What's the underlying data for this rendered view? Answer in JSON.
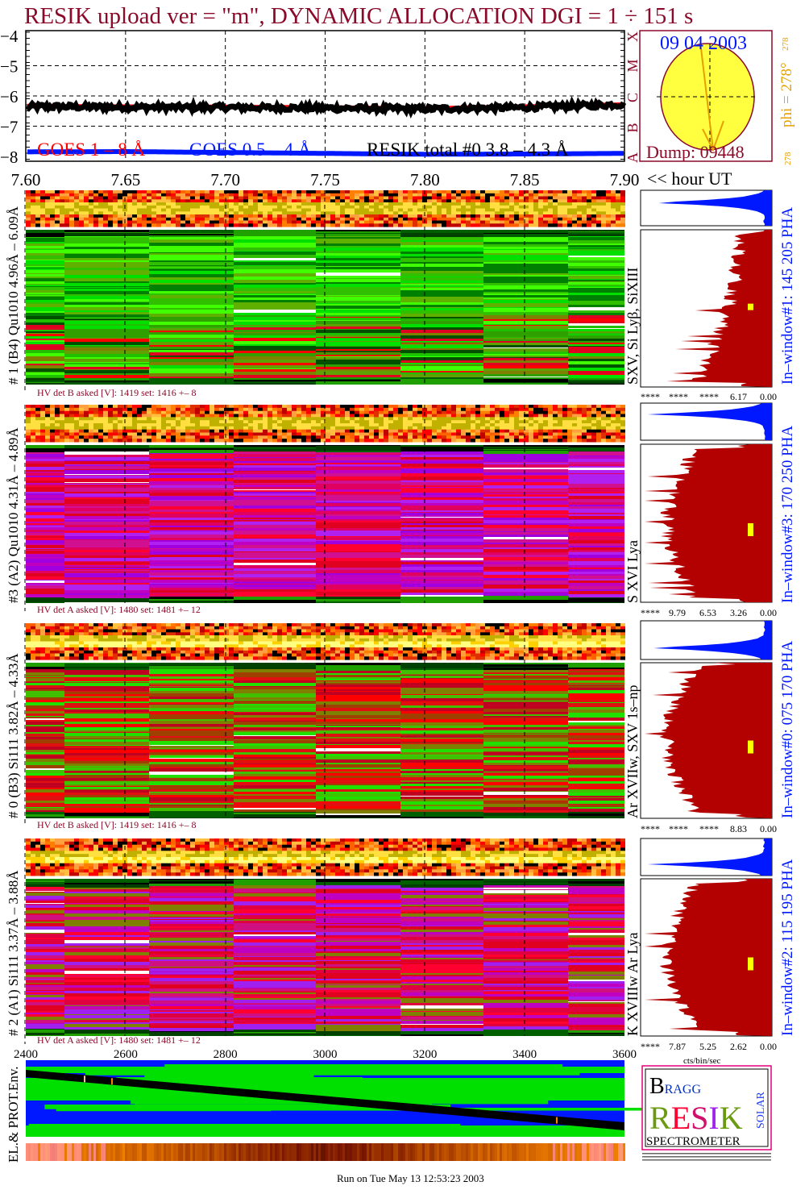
{
  "title": "RESIK upload ver = \"m\", DYNAMIC ALLOCATION  DGI =   1 ÷ 151 s",
  "colors": {
    "title": "#8b0a2a",
    "goes_long": "#ff0000",
    "goes_short": "#0018ff",
    "resik": "#000000",
    "histogram": "#b30000",
    "histogram_top": "#0018ff",
    "sun": "#ffff40",
    "sun_border": "#8b0a2a",
    "phi": "#e8a000"
  },
  "chart_data": [
    {
      "type": "line",
      "x_ticks": [
        "7.60",
        "7.65",
        "7.70",
        "7.75",
        "7.80",
        "7.85",
        "7.90"
      ],
      "xlim": [
        7.6,
        7.9
      ],
      "xlabel": "<< hour UT",
      "y_ticks": [
        "−4",
        "−5",
        "−6",
        "−7",
        "−8"
      ],
      "ylim": [
        -8,
        -4
      ],
      "flare_class_labels": [
        "X",
        "M",
        "C",
        "B",
        "A"
      ],
      "grid": true,
      "series": [
        {
          "name": "GOES 1 – 8 Å",
          "color": "#ff0000",
          "x": [
            7.6,
            7.65,
            7.7,
            7.75,
            7.8,
            7.85,
            7.9
          ],
          "values": [
            -6.3,
            -6.32,
            -6.33,
            -6.35,
            -6.38,
            -6.32,
            -6.25
          ]
        },
        {
          "name": "GOES 0.5 – 4 Å",
          "color": "#0018ff",
          "x": [
            7.6,
            7.65,
            7.7,
            7.75,
            7.8,
            7.85,
            7.9
          ],
          "values": [
            -7.85,
            -7.84,
            -7.87,
            -7.9,
            -7.93,
            -7.92,
            -7.9
          ]
        },
        {
          "name": "RESIK total #0  3.8 – 4.3 Å",
          "color": "#000000",
          "x": [
            7.6,
            7.65,
            7.7,
            7.75,
            7.8,
            7.85,
            7.9
          ],
          "values": [
            -6.35,
            -6.37,
            -6.38,
            -6.4,
            -6.43,
            -6.38,
            -6.28
          ]
        }
      ]
    },
    {
      "type": "heatmap",
      "x_ticks": [
        "2400",
        "2600",
        "2800",
        "3000",
        "3200",
        "3400",
        "3600"
      ],
      "xlim": [
        2400,
        3600
      ]
    }
  ],
  "sun": {
    "date": "09 04 2003",
    "dump": "Dump: 09448",
    "phi": "phi = 278°",
    "phi_small": "278",
    "phi_bottom": "278"
  },
  "panels": [
    {
      "label": "# 1 (B4) Qu1010 4.96Å – 6.09Å",
      "lines": "SXV, Si Lyβ, SiXIII",
      "window": "In–window#1:  145 205 PHA",
      "hv": "HV det B asked [V]:  1419 set:  1416  +–   8",
      "ticks": [
        "****",
        "****",
        "****",
        "6.17",
        "0.00"
      ],
      "palette": "green"
    },
    {
      "label": "#3 (A2) Qu1010  4.31Å – 4.89Å",
      "lines": "S XVI Lya",
      "window": "In–window#3:  170 250 PHA",
      "hv": "HV det A asked [V]:  1480 set:  1481  +–   12",
      "ticks": [
        "****",
        "9.79",
        "6.53",
        "3.26",
        "0.00"
      ],
      "palette": "purple"
    },
    {
      "label": "# 0 (B3) Si111  3.82Å – 4.33Å",
      "lines": "Ar XVIIw,  SXV 1s–np",
      "window": "In–window#0:  075 170 PHA",
      "hv": "HV det B asked [V]:  1419 set:  1416  +–   8",
      "ticks": [
        "****",
        "****",
        "****",
        "8.83",
        "0.00"
      ],
      "palette": "red"
    },
    {
      "label": "# 2 (A1) Si111  3.37Å – 3.88Å",
      "lines": "K XVIIIw  Ar Lya",
      "window": "In–window#2:  115 195 PHA",
      "hv": "HV det A asked [V]:  1480 set:  1481  +–   12",
      "ticks": [
        "****",
        "7.87",
        "5.25",
        "2.62",
        "0.00"
      ],
      "palette": "purple2"
    }
  ],
  "hist_unit": "cts/bin/sec",
  "env_label": "EL.& PROT.Env.",
  "logo": {
    "text": "BRAGG RESIK SOLAR",
    "caption": "SPECTROMETER"
  },
  "footer": "Run on Tue May 13 12:53:23 2003"
}
